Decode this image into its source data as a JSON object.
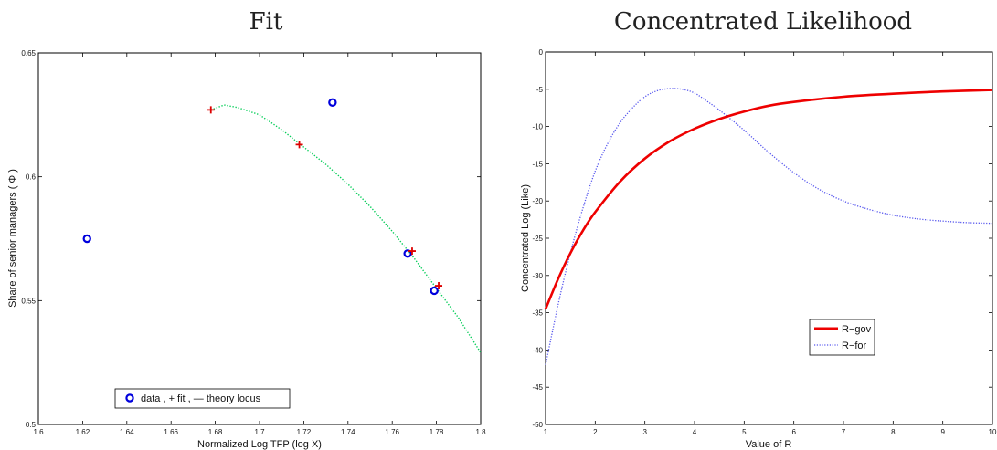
{
  "chart_data": [
    {
      "type": "scatter",
      "title": "Fit",
      "xlabel": "Normalized  Log  TFP (log X)",
      "ylabel": "Share of senior managers ( Φ )",
      "xlim": [
        1.6,
        1.8
      ],
      "ylim": [
        0.5,
        0.65
      ],
      "xticks": [
        "1.6",
        "1.62",
        "1.64",
        "1.66",
        "1.68",
        "1.7",
        "1.72",
        "1.74",
        "1.76",
        "1.78",
        "1.8"
      ],
      "yticks": [
        "0.5",
        "0.55",
        "0.6",
        "0.65"
      ],
      "grid": false,
      "legend_text": "data , + fit , — theory locus",
      "legend_position": "bottom-center",
      "series": [
        {
          "marker": "o",
          "color": "#0000dd",
          "points": [
            [
              1.622,
              0.575
            ],
            [
              1.733,
              0.63
            ],
            [
              1.767,
              0.569
            ],
            [
              1.779,
              0.554
            ]
          ]
        },
        {
          "marker": "+",
          "color": "#dd0000",
          "points": [
            [
              1.678,
              0.627
            ],
            [
              1.718,
              0.613
            ],
            [
              1.769,
              0.57
            ],
            [
              1.781,
              0.556
            ]
          ]
        },
        {
          "marker": "dotted-line",
          "color": "#00cc55",
          "x": [
            1.678,
            1.684,
            1.69,
            1.7,
            1.71,
            1.72,
            1.73,
            1.74,
            1.75,
            1.76,
            1.77,
            1.78,
            1.79,
            1.8
          ],
          "y": [
            0.627,
            0.629,
            0.628,
            0.625,
            0.619,
            0.612,
            0.605,
            0.597,
            0.588,
            0.578,
            0.567,
            0.555,
            0.543,
            0.529
          ]
        }
      ]
    },
    {
      "type": "line",
      "title": "Concentrated Likelihood",
      "xlabel": "Value of R",
      "ylabel": "Concentrated Log (Like)",
      "xlim": [
        1,
        10
      ],
      "ylim": [
        -50,
        0
      ],
      "xticks": [
        "1",
        "2",
        "3",
        "4",
        "5",
        "6",
        "7",
        "8",
        "9",
        "10"
      ],
      "yticks": [
        "0",
        "-5",
        "-10",
        "-15",
        "-20",
        "-25",
        "-30",
        "-35",
        "-40",
        "-45",
        "-50"
      ],
      "grid": false,
      "legend_position": "center",
      "series": [
        {
          "name": "R−gov",
          "style": "solid",
          "color": "#ee0000",
          "x": [
            1,
            1.25,
            1.5,
            1.75,
            2,
            2.5,
            3,
            3.5,
            4,
            4.5,
            5,
            5.5,
            6,
            7,
            8,
            9,
            10
          ],
          "y": [
            -34.5,
            -30.5,
            -27,
            -24,
            -21.5,
            -17.4,
            -14.3,
            -12,
            -10.3,
            -9,
            -8,
            -7.2,
            -6.7,
            -6,
            -5.6,
            -5.3,
            -5.1
          ]
        },
        {
          "name": "R−for",
          "style": "dotted",
          "color": "#5555ee",
          "x": [
            1,
            1.25,
            1.5,
            1.75,
            2,
            2.25,
            2.5,
            2.75,
            3,
            3.25,
            3.5,
            3.75,
            4,
            4.25,
            4.5,
            5,
            5.5,
            6,
            6.5,
            7,
            7.5,
            8,
            8.5,
            9,
            9.5,
            10
          ],
          "y": [
            -42,
            -34,
            -27,
            -21,
            -16,
            -12.3,
            -9.5,
            -7.5,
            -6,
            -5.2,
            -4.9,
            -5,
            -5.5,
            -6.6,
            -7.8,
            -10.5,
            -13.5,
            -16.2,
            -18.4,
            -20,
            -21.1,
            -21.9,
            -22.4,
            -22.7,
            -22.9,
            -23
          ]
        }
      ]
    }
  ]
}
